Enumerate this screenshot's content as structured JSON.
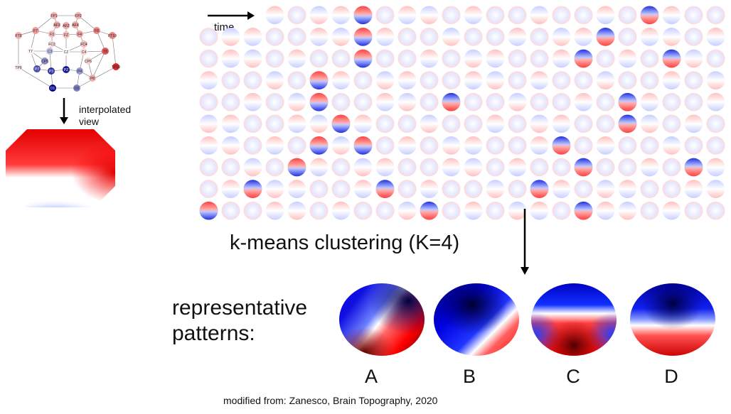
{
  "electrodes": [
    {
      "label": "FP1",
      "value": 0.35
    },
    {
      "label": "FP2",
      "value": 0.35
    },
    {
      "label": "AF3",
      "value": 0.4
    },
    {
      "label": "AFZ",
      "value": 0.4
    },
    {
      "label": "AF4",
      "value": 0.4
    },
    {
      "label": "F7",
      "value": 0.45
    },
    {
      "label": "F3",
      "value": 0.3
    },
    {
      "label": "FZ",
      "value": 0.3
    },
    {
      "label": "F4",
      "value": 0.4
    },
    {
      "label": "F8",
      "value": 0.55
    },
    {
      "label": "FT9",
      "value": 0.35
    },
    {
      "label": "FC3",
      "value": 0.15
    },
    {
      "label": "FC4",
      "value": 0.3
    },
    {
      "label": "FT10",
      "value": 0.55
    },
    {
      "label": "T7",
      "value": 0.05
    },
    {
      "label": "C3",
      "value": -0.25
    },
    {
      "label": "CZ",
      "value": 0.0
    },
    {
      "label": "C4",
      "value": 0.15
    },
    {
      "label": "T8",
      "value": 0.75
    },
    {
      "label": "TP9",
      "value": 0.1
    },
    {
      "label": "CP5",
      "value": -0.45
    },
    {
      "label": "CP6",
      "value": 0.2
    },
    {
      "label": "TP10",
      "value": 0.95
    },
    {
      "label": "P7",
      "value": -0.7
    },
    {
      "label": "P3",
      "value": -0.8
    },
    {
      "label": "PZ",
      "value": -0.9
    },
    {
      "label": "P4",
      "value": -0.4
    },
    {
      "label": "P8",
      "value": 0.35
    },
    {
      "label": "O1",
      "value": -1.0
    },
    {
      "label": "O2",
      "value": -0.5
    }
  ],
  "labels": {
    "interpolated": "interpolated view",
    "time": "time",
    "kmeans": "k-means clustering (K=4)",
    "representative": "representative patterns:",
    "credit": "modified from: Zanesco, Brain Topography, 2020"
  },
  "patterns": [
    {
      "letter": "A"
    },
    {
      "letter": "B"
    },
    {
      "letter": "C"
    },
    {
      "letter": "D"
    }
  ],
  "grid": {
    "rows": 10,
    "cols": 24
  },
  "colors": {
    "positive": "#d7001a",
    "negative": "#0000c8",
    "neutral": "#ffffff"
  }
}
